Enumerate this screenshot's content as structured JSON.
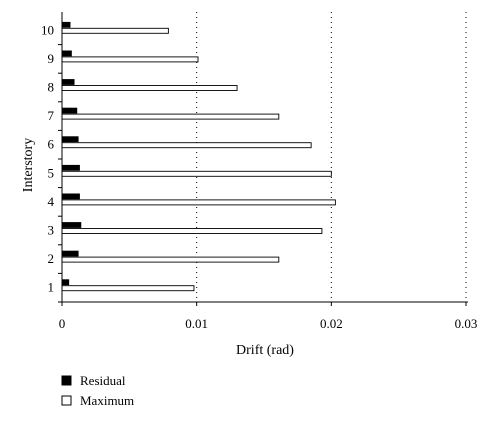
{
  "chart_data": {
    "type": "bar",
    "orientation": "horizontal",
    "categories": [
      "1",
      "2",
      "3",
      "4",
      "5",
      "6",
      "7",
      "8",
      "9",
      "10"
    ],
    "series": [
      {
        "name": "Residual",
        "color": "#000000",
        "values": [
          0.0005,
          0.0012,
          0.0014,
          0.0013,
          0.0013,
          0.0012,
          0.0011,
          0.0009,
          0.0007,
          0.0006
        ]
      },
      {
        "name": "Maximum",
        "color": "#ffffff",
        "values": [
          0.0098,
          0.0161,
          0.0193,
          0.0203,
          0.02,
          0.0185,
          0.0161,
          0.013,
          0.0101,
          0.0079
        ]
      }
    ],
    "xlabel": "Drift (rad)",
    "ylabel": "Interstory",
    "xlim": [
      0,
      0.03
    ],
    "xticks": [
      "0",
      "0.01",
      "0.02",
      "0.03"
    ],
    "grid": "vertical dotted",
    "legend_position": "bottom-left"
  }
}
